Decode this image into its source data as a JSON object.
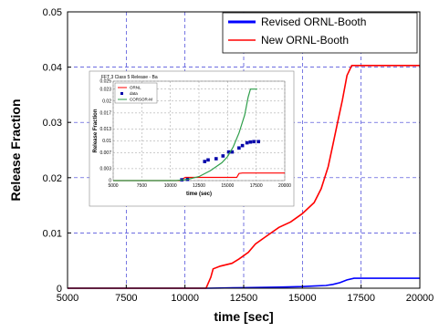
{
  "chart_data": [
    {
      "type": "line",
      "title": "",
      "xlabel": "time [sec]",
      "ylabel": "Release Fraction",
      "xlim": [
        5000,
        20000
      ],
      "ylim": [
        0,
        0.05
      ],
      "xticks": [
        5000,
        7500,
        10000,
        12500,
        15000,
        17500,
        20000
      ],
      "yticks": [
        0,
        0.01,
        0.02,
        0.03,
        0.04,
        0.05
      ],
      "xtick_labels": [
        "5000",
        "7500",
        "10000",
        "12500",
        "15000",
        "17500",
        "20000"
      ],
      "ytick_labels": [
        "0",
        "0.01",
        "0.02",
        "0.03",
        "0.04",
        "0.05"
      ],
      "grid": true,
      "legend_position": "top-right",
      "series": [
        {
          "name": "Revised ORNL-Booth",
          "color": "#0000ff",
          "x": [
            5000,
            10000,
            11000,
            12500,
            14000,
            15000,
            15500,
            16000,
            16300,
            16600,
            16900,
            17200,
            18000,
            20000
          ],
          "y": [
            0,
            0,
            0,
            0.0001,
            0.0002,
            0.0003,
            0.0004,
            0.0005,
            0.0007,
            0.001,
            0.0015,
            0.0018,
            0.0018,
            0.0018
          ]
        },
        {
          "name": "New ORNL-Booth",
          "color": "#ff0000",
          "x": [
            5000,
            10900,
            11000,
            11100,
            11200,
            11500,
            12000,
            12300,
            12700,
            13000,
            13500,
            14000,
            14500,
            15000,
            15500,
            15800,
            16100,
            16300,
            16500,
            16700,
            16900,
            17100,
            17200,
            20000
          ],
          "y": [
            0,
            0,
            0.001,
            0.002,
            0.0035,
            0.004,
            0.0045,
            0.0053,
            0.0065,
            0.008,
            0.0095,
            0.011,
            0.012,
            0.0135,
            0.0155,
            0.018,
            0.022,
            0.026,
            0.03,
            0.034,
            0.0385,
            0.0403,
            0.0403,
            0.0403
          ]
        }
      ]
    },
    {
      "type": "line",
      "title": "FFT 3 Class 5 Release - Ba",
      "xlabel": "time (sec)",
      "ylabel": "Release Fraction",
      "xlim": [
        5000,
        20000
      ],
      "ylim": [
        0,
        0.025
      ],
      "xticks": [
        5000,
        7500,
        10000,
        12500,
        15000,
        17500,
        20000
      ],
      "yticks": [
        0,
        0.003,
        0.007,
        0.01,
        0.013,
        0.017,
        0.02,
        0.023,
        0.025
      ],
      "xtick_labels": [
        "5000",
        "7500",
        "10000",
        "12500",
        "15000",
        "17500",
        "20000"
      ],
      "ytick_labels": [
        "0",
        "0.003",
        "0.007",
        "0.01",
        "0.013",
        "0.017",
        "0.02",
        "0.023",
        "0.025"
      ],
      "grid": true,
      "legend_position": "top-left",
      "series": [
        {
          "name": "ORNL",
          "color": "#ff0000",
          "mode": "line",
          "x": [
            5000,
            10800,
            11000,
            11300,
            15800,
            16000,
            16300,
            16500,
            20000
          ],
          "y": [
            0,
            0,
            0.0003,
            0.0008,
            0.0008,
            0.0018,
            0.0019,
            0.0019,
            0.0019
          ]
        },
        {
          "name": "data",
          "color": "#0000aa",
          "mode": "markers",
          "x": [
            11000,
            11500,
            13000,
            13300,
            14000,
            14600,
            15100,
            15400,
            16000,
            16300,
            16700,
            17000,
            17300,
            17700
          ],
          "y": [
            0.0002,
            0.0003,
            0.0048,
            0.0052,
            0.0055,
            0.0062,
            0.0072,
            0.0072,
            0.0082,
            0.0088,
            0.0095,
            0.0097,
            0.0098,
            0.0098
          ]
        },
        {
          "name": "CORSOR-M",
          "color": "#2e9e4a",
          "mode": "line",
          "x": [
            5000,
            10500,
            11500,
            12500,
            13500,
            14500,
            15000,
            15500,
            16000,
            16500,
            16800,
            17000,
            17600
          ],
          "y": [
            0,
            0,
            0.0003,
            0.001,
            0.0025,
            0.0045,
            0.006,
            0.0085,
            0.012,
            0.0165,
            0.021,
            0.023,
            0.023
          ]
        }
      ]
    }
  ]
}
